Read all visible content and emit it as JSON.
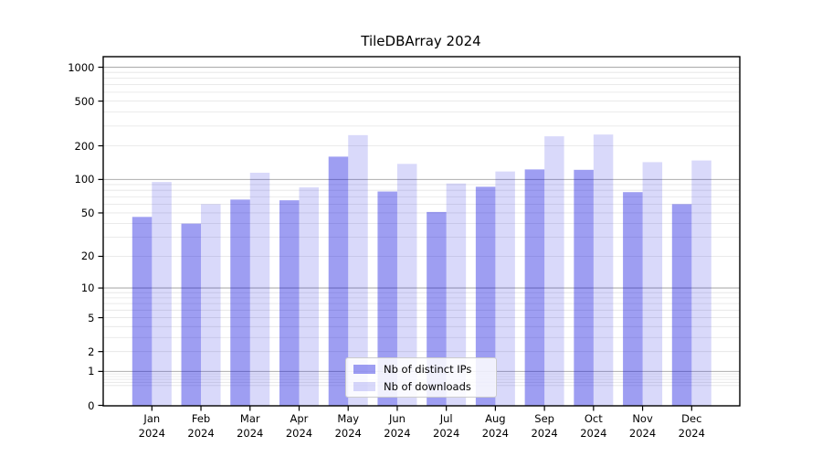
{
  "title": "TileDBArray 2024",
  "chart_data": {
    "type": "bar",
    "categories": [
      "Jan",
      "Feb",
      "Mar",
      "Apr",
      "May",
      "Jun",
      "Jul",
      "Aug",
      "Sep",
      "Oct",
      "Nov",
      "Dec"
    ],
    "year": "2024",
    "series": [
      {
        "name": "Nb of distinct IPs",
        "color": "rgba(0,0,220,0.38)",
        "values": [
          46,
          40,
          66,
          65,
          160,
          78,
          51,
          86,
          123,
          122,
          77,
          60
        ]
      },
      {
        "name": "Nb of downloads",
        "color": "rgba(0,0,220,0.15)",
        "values": [
          95,
          60,
          115,
          85,
          249,
          138,
          92,
          118,
          243,
          252,
          143,
          148
        ]
      }
    ],
    "yscale": "log1p",
    "ylim": [
      0,
      1250
    ],
    "yticks": [
      0,
      1,
      2,
      5,
      10,
      20,
      50,
      100,
      200,
      500,
      1000
    ],
    "grid": {
      "major": [
        1,
        10,
        100,
        1000
      ],
      "minor": [
        0.5,
        0.6,
        0.7,
        0.8,
        0.9,
        2,
        3,
        4,
        5,
        6,
        7,
        8,
        9,
        20,
        30,
        40,
        50,
        60,
        70,
        80,
        90,
        200,
        300,
        400,
        500,
        600,
        700,
        800,
        900
      ],
      "major_color": "#aeaeae",
      "minor_color": "#e4e4e4"
    },
    "legend": {
      "position": "lower center"
    }
  }
}
